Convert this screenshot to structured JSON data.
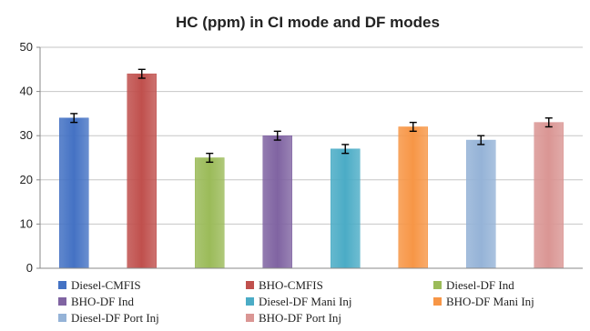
{
  "chart_data": {
    "type": "bar",
    "title": "HC (ppm) in CI mode and DF modes",
    "xlabel": "",
    "ylabel": "",
    "ylim": [
      0,
      50
    ],
    "yticks": [
      0,
      10,
      20,
      30,
      40,
      50
    ],
    "grid": true,
    "legend_position": "bottom",
    "series": [
      {
        "name": "Diesel-CMFIS",
        "value": 34,
        "error": 1,
        "color": "#4472C4"
      },
      {
        "name": "BHO-CMFIS",
        "value": 44,
        "error": 1,
        "color": "#C0504D"
      },
      {
        "name": "Diesel-DF Ind",
        "value": 25,
        "error": 1,
        "color": "#9BBB59"
      },
      {
        "name": "BHO-DF Ind",
        "value": 30,
        "error": 1,
        "color": "#8064A2"
      },
      {
        "name": "Diesel-DF Mani Inj",
        "value": 27,
        "error": 1,
        "color": "#4BACC6"
      },
      {
        "name": "BHO-DF Mani Inj",
        "value": 32,
        "error": 1,
        "color": "#F79646"
      },
      {
        "name": "Diesel-DF Port Inj",
        "value": 29,
        "error": 1,
        "color": "#95B3D7"
      },
      {
        "name": "BHO-DF Port Inj",
        "value": 33,
        "error": 1,
        "color": "#DA9694"
      }
    ]
  }
}
